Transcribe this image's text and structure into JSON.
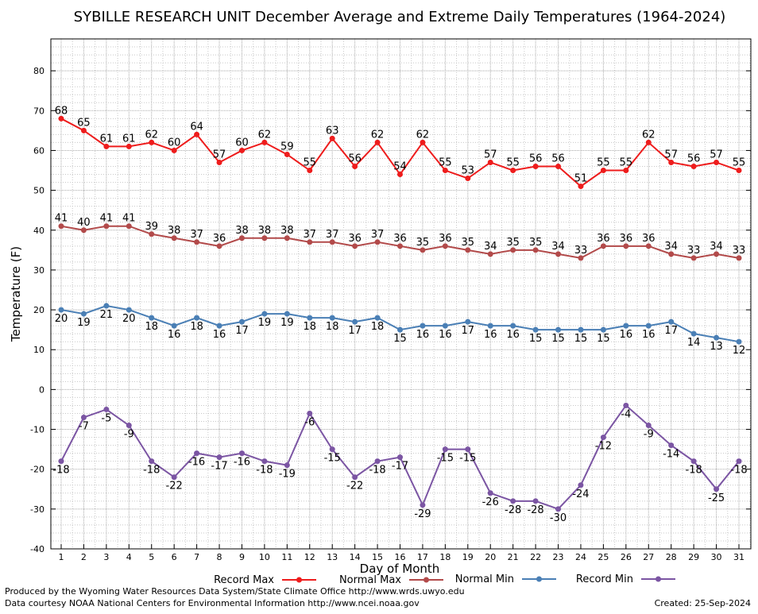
{
  "chart_data": {
    "type": "line",
    "title": "SYBILLE RESEARCH UNIT December Average and Extreme Daily Temperatures (1964-2024)",
    "xlabel": "Day of Month",
    "ylabel": "Temperature (F)",
    "ylim": [
      -40,
      88
    ],
    "yticks": [
      -40,
      -30,
      -20,
      -10,
      0,
      10,
      20,
      30,
      40,
      50,
      60,
      70,
      80
    ],
    "x": [
      1,
      2,
      3,
      4,
      5,
      6,
      7,
      8,
      9,
      10,
      11,
      12,
      13,
      14,
      15,
      16,
      17,
      18,
      19,
      20,
      21,
      22,
      23,
      24,
      25,
      26,
      27,
      28,
      29,
      30,
      31
    ],
    "grid": true,
    "legend_position": "bottom",
    "series": [
      {
        "name": "Record Max",
        "color": "#ee1c1c",
        "label_side": "above",
        "values": [
          68,
          65,
          61,
          61,
          62,
          60,
          64,
          57,
          60,
          62,
          59,
          55,
          63,
          56,
          62,
          54,
          62,
          55,
          53,
          57,
          55,
          56,
          56,
          51,
          55,
          55,
          62,
          57,
          56,
          57,
          55
        ]
      },
      {
        "name": "Normal Max",
        "color": "#b24a4a",
        "label_side": "above",
        "values": [
          41,
          40,
          41,
          41,
          39,
          38,
          37,
          36,
          38,
          38,
          38,
          37,
          37,
          36,
          37,
          36,
          35,
          36,
          35,
          34,
          35,
          35,
          34,
          33,
          36,
          36,
          36,
          34,
          33,
          34,
          33
        ]
      },
      {
        "name": "Normal Min",
        "color": "#4a7fb5",
        "label_side": "below",
        "values": [
          20,
          19,
          21,
          20,
          18,
          16,
          18,
          16,
          17,
          19,
          19,
          18,
          18,
          17,
          18,
          15,
          16,
          16,
          17,
          16,
          16,
          15,
          15,
          15,
          15,
          16,
          16,
          17,
          14,
          13,
          12
        ]
      },
      {
        "name": "Record Min",
        "color": "#7b55a3",
        "label_side": "below",
        "values": [
          -18,
          -7,
          -5,
          -9,
          -18,
          -22,
          -16,
          -17,
          -16,
          -18,
          -19,
          -6,
          -15,
          -22,
          -18,
          -17,
          -29,
          -15,
          -15,
          -26,
          -28,
          -28,
          -30,
          -24,
          -12,
          -4,
          -9,
          -14,
          -18,
          -25,
          -18
        ]
      }
    ]
  },
  "footer": {
    "line1": "Produced by the Wyoming Water Resources Data System/State Climate Office http://www.wrds.uwyo.edu",
    "line2": "Data courtesy NOAA National Centers for Environmental Information http://www.ncei.noaa.gov",
    "created": "Created: 25-Sep-2024"
  }
}
